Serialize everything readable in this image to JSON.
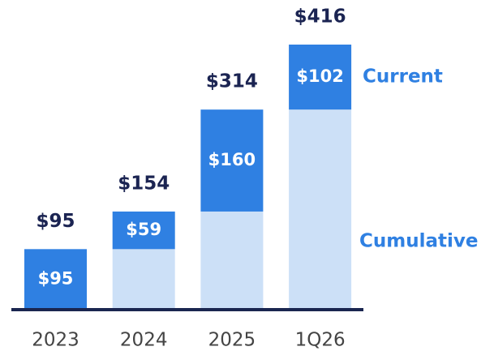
{
  "chart_data": {
    "type": "stacked_bar",
    "categories": [
      "2023",
      "2024",
      "2025",
      "1Q26"
    ],
    "series": [
      {
        "name": "Cumulative",
        "color": "#cce0f7",
        "values": [
          0,
          95,
          154,
          314
        ]
      },
      {
        "name": "Current",
        "color": "#2f80e2",
        "values": [
          95,
          59,
          160,
          102
        ],
        "value_labels": [
          "$95",
          "$59",
          "$160",
          "$102"
        ]
      }
    ],
    "totals": [
      95,
      154,
      314,
      416
    ],
    "total_labels": [
      "$95",
      "$154",
      "$314",
      "$416"
    ]
  }
}
